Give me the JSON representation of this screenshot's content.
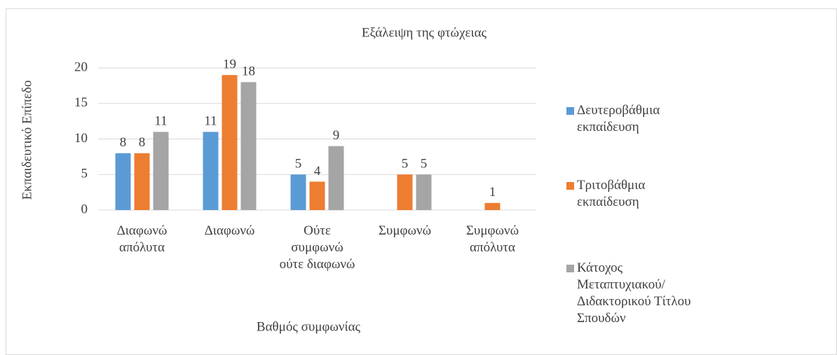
{
  "chart_data": {
    "type": "bar",
    "title": "Εξάλειψη της φτώχειας",
    "x_label": "Βαθμός συμφωνίας",
    "y_label": "Εκπαιδευτικό Επίπεδο",
    "categories": [
      "Διαφωνώ απόλυτα",
      "Διαφωνώ",
      "Ούτε συμφωνώ ούτε διαφωνώ",
      "Συμφωνώ",
      "Συμφωνώ απόλυτα"
    ],
    "series": [
      {
        "name": "Δευτεροβάθμια εκπαίδευση",
        "color": "#5b9bd5",
        "values": [
          8,
          11,
          5,
          null,
          null
        ]
      },
      {
        "name": "Τριτοβάθμια εκπαίδευση",
        "color": "#ed7d31",
        "values": [
          8,
          19,
          4,
          5,
          1
        ]
      },
      {
        "name": "Κάτοχος Μεταπτυχιακού/Διδακτορικού Τίτλου Σπουδών",
        "color": "#a5a5a5",
        "values": [
          11,
          18,
          9,
          5,
          null
        ]
      }
    ],
    "ylim": [
      0,
      20
    ],
    "yticks": [
      0,
      5,
      10,
      15,
      20
    ],
    "grid": true,
    "legend": "right"
  }
}
